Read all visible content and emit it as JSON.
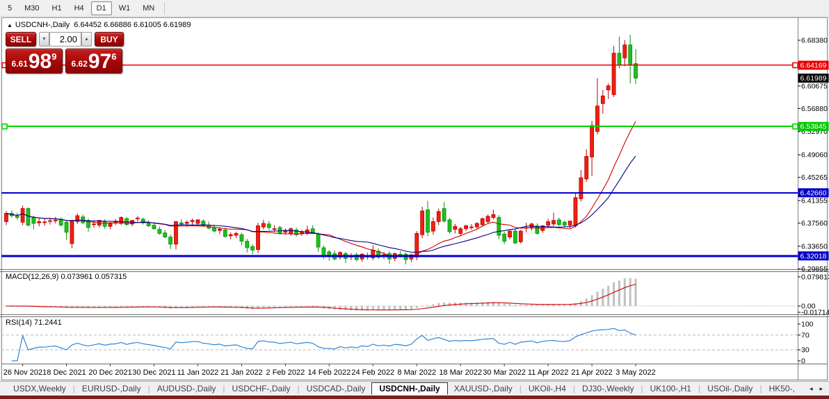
{
  "toolbar": {
    "timeframes": [
      {
        "label": "5",
        "active": false
      },
      {
        "label": "M30",
        "active": false
      },
      {
        "label": "H1",
        "active": false
      },
      {
        "label": "H4",
        "active": false
      },
      {
        "label": "D1",
        "active": true
      },
      {
        "label": "W1",
        "active": false
      },
      {
        "label": "MN",
        "active": false
      }
    ]
  },
  "chart": {
    "collapse_arrow": "▲",
    "symbol_title": "USDCNH-,Daily",
    "ohlc_text": "6.64452 6.66886 6.61005 6.61989"
  },
  "trade": {
    "sell_label": "SELL",
    "buy_label": "BUY",
    "volume": "2.00",
    "volume_down_glyph": "▼",
    "volume_up_glyph": "▲",
    "sell_price_small": "6.61",
    "sell_price_big": "98",
    "sell_price_sup": "9",
    "buy_price_small": "6.62",
    "buy_price_big": "97",
    "buy_price_sup": "6"
  },
  "indicators": {
    "macd": {
      "label": "MACD(12,26,9)",
      "value_text": "0.073961 0.057315",
      "axis_labels": [
        {
          "t": "0.079813",
          "v": 0.079813
        },
        {
          "t": "0.00",
          "v": 0
        },
        {
          "t": "-0.01714",
          "v": -0.01714
        }
      ],
      "fast": 12,
      "slow": 26,
      "signal": 9,
      "histogram_color": "#c0c0c0",
      "signal_color": "#cc0000"
    },
    "rsi": {
      "label": "RSI(14)",
      "value_text": "71.2441",
      "period": 14,
      "line_color": "#2e86d4",
      "axis_labels": [
        {
          "t": "100",
          "v": 100
        },
        {
          "t": "70",
          "v": 70
        },
        {
          "t": "30",
          "v": 30
        },
        {
          "t": "0",
          "v": 0
        }
      ],
      "dashed_levels": [
        70,
        30
      ]
    }
  },
  "chart_data": {
    "type": "candlestick",
    "symbol": "USDCNH",
    "timeframe": "Daily",
    "title": "USDCNH-,Daily",
    "current_ohlc": {
      "open": 6.64452,
      "high": 6.66886,
      "low": 6.61005,
      "close": 6.61989
    },
    "up_color": "#f02011",
    "down_color": "#1fbf1f",
    "moving_averages": [
      {
        "name": "ma-fast",
        "period": 14,
        "color": "#cc0000"
      },
      {
        "name": "ma-slow",
        "period": 21,
        "color": "#00008b"
      }
    ],
    "y_axis": {
      "ticks": [
        {
          "t": "6.68380",
          "v": 6.6838
        },
        {
          "t": "6.60675",
          "v": 6.60675
        },
        {
          "t": "6.56880",
          "v": 6.5688
        },
        {
          "t": "6.52970",
          "v": 6.5297
        },
        {
          "t": "6.49060",
          "v": 6.4906
        },
        {
          "t": "6.45265",
          "v": 6.45265
        },
        {
          "t": "6.41355",
          "v": 6.41355
        },
        {
          "t": "6.37560",
          "v": 6.3756
        },
        {
          "t": "6.33650",
          "v": 6.3365
        },
        {
          "t": "6.29855",
          "v": 6.29855
        }
      ],
      "badges": [
        {
          "t": "6.64169",
          "v": 6.64169,
          "c": "#e80000"
        },
        {
          "t": "6.61989",
          "v": 6.61989,
          "c": "#000000"
        },
        {
          "t": "6.53845",
          "v": 6.53845,
          "c": "#00c800"
        },
        {
          "t": "6.42660",
          "v": 6.4266,
          "c": "#0000c8"
        },
        {
          "t": "6.32018",
          "v": 6.32018,
          "c": "#0000c8"
        }
      ]
    },
    "horizontal_lines": [
      {
        "price": 6.64169,
        "color": "#e80000",
        "width": 1.5,
        "handles": true
      },
      {
        "price": 6.53845,
        "color": "#00d200",
        "width": 2,
        "handles": true
      },
      {
        "price": 6.4266,
        "color": "#0000c8",
        "width": 2,
        "handles": false
      },
      {
        "price": 6.32018,
        "color": "#0000c8",
        "width": 3,
        "handles": false
      }
    ],
    "x_axis": {
      "labels": [
        {
          "text": "26 Nov 2021",
          "i": 3
        },
        {
          "text": "8 Dec 2021",
          "i": 11
        },
        {
          "text": "20 Dec 2021",
          "i": 19
        },
        {
          "text": "30 Dec 2021",
          "i": 27
        },
        {
          "text": "11 Jan 2022",
          "i": 35
        },
        {
          "text": "21 Jan 2022",
          "i": 43
        },
        {
          "text": "2 Feb 2022",
          "i": 51
        },
        {
          "text": "14 Feb 2022",
          "i": 59
        },
        {
          "text": "24 Feb 2022",
          "i": 67
        },
        {
          "text": "8 Mar 2022",
          "i": 75
        },
        {
          "text": "18 Mar 2022",
          "i": 83
        },
        {
          "text": "30 Mar 2022",
          "i": 91
        },
        {
          "text": "11 Apr 2022",
          "i": 99
        },
        {
          "text": "21 Apr 2022",
          "i": 107
        },
        {
          "text": "3 May 2022",
          "i": 115
        }
      ]
    },
    "candles": [
      [
        6.378,
        6.396,
        6.372,
        6.392
      ],
      [
        6.392,
        6.397,
        6.385,
        6.388
      ],
      [
        6.387,
        6.393,
        6.381,
        6.385
      ],
      [
        6.377,
        6.405,
        6.372,
        6.4
      ],
      [
        6.4,
        6.402,
        6.37,
        6.372
      ],
      [
        6.385,
        6.388,
        6.365,
        6.375
      ],
      [
        6.376,
        6.384,
        6.37,
        6.378
      ],
      [
        6.377,
        6.383,
        6.371,
        6.3775
      ],
      [
        6.379,
        6.385,
        6.373,
        6.3795
      ],
      [
        6.38,
        6.386,
        6.375,
        6.3805
      ],
      [
        6.382,
        6.385,
        6.37,
        6.372
      ],
      [
        6.377,
        6.379,
        6.347,
        6.36
      ],
      [
        6.341,
        6.381,
        6.333,
        6.3785
      ],
      [
        6.378,
        6.392,
        6.374,
        6.388
      ],
      [
        6.386,
        6.39,
        6.374,
        6.376
      ],
      [
        6.38,
        6.383,
        6.361,
        6.368
      ],
      [
        6.374,
        6.38,
        6.368,
        6.374
      ],
      [
        6.372,
        6.381,
        6.368,
        6.38
      ],
      [
        6.378,
        6.382,
        6.366,
        6.37
      ],
      [
        6.37,
        6.377,
        6.365,
        6.376
      ],
      [
        6.377,
        6.382,
        6.372,
        6.3775
      ],
      [
        6.375,
        6.387,
        6.372,
        6.385
      ],
      [
        6.383,
        6.386,
        6.371,
        6.373
      ],
      [
        6.374,
        6.381,
        6.37,
        6.38
      ],
      [
        6.383,
        6.387,
        6.378,
        6.384
      ],
      [
        6.382,
        6.385,
        6.373,
        6.376
      ],
      [
        6.375,
        6.38,
        6.369,
        6.371
      ],
      [
        6.372,
        6.376,
        6.364,
        6.366
      ],
      [
        6.365,
        6.37,
        6.356,
        6.358
      ],
      [
        6.359,
        6.364,
        6.35,
        6.352
      ],
      [
        6.352,
        6.356,
        6.332,
        6.34
      ],
      [
        6.34,
        6.379,
        6.331,
        6.378
      ],
      [
        6.376,
        6.382,
        6.37,
        6.374
      ],
      [
        6.375,
        6.38,
        6.369,
        6.377
      ],
      [
        6.378,
        6.383,
        6.372,
        6.38
      ],
      [
        6.375,
        6.382,
        6.37,
        6.381
      ],
      [
        6.379,
        6.382,
        6.369,
        6.371
      ],
      [
        6.372,
        6.378,
        6.365,
        6.367
      ],
      [
        6.368,
        6.373,
        6.36,
        6.362
      ],
      [
        6.363,
        6.369,
        6.357,
        6.365
      ],
      [
        6.364,
        6.368,
        6.351,
        6.353
      ],
      [
        6.354,
        6.36,
        6.348,
        6.356
      ],
      [
        6.355,
        6.361,
        6.35,
        6.358
      ],
      [
        6.356,
        6.359,
        6.338,
        6.345
      ],
      [
        6.345,
        6.349,
        6.326,
        6.334
      ],
      [
        6.336,
        6.34,
        6.323,
        6.33
      ],
      [
        6.331,
        6.376,
        6.325,
        6.371
      ],
      [
        6.369,
        6.381,
        6.365,
        6.375
      ],
      [
        6.374,
        6.379,
        6.364,
        6.368
      ],
      [
        6.365,
        6.372,
        6.36,
        6.366
      ],
      [
        6.368,
        6.371,
        6.356,
        6.358
      ],
      [
        6.36,
        6.366,
        6.356,
        6.362
      ],
      [
        6.358,
        6.368,
        6.354,
        6.366
      ],
      [
        6.364,
        6.368,
        6.353,
        6.356
      ],
      [
        6.358,
        6.364,
        6.354,
        6.36
      ],
      [
        6.358,
        6.371,
        6.355,
        6.364
      ],
      [
        6.366,
        6.372,
        6.358,
        6.359
      ],
      [
        6.357,
        6.36,
        6.327,
        6.335
      ],
      [
        6.334,
        6.338,
        6.315,
        6.321
      ],
      [
        6.327,
        6.33,
        6.312,
        6.32
      ],
      [
        6.324,
        6.329,
        6.313,
        6.315
      ],
      [
        6.318,
        6.328,
        6.314,
        6.326
      ],
      [
        6.324,
        6.327,
        6.308,
        6.316
      ],
      [
        6.318,
        6.325,
        6.313,
        6.32
      ],
      [
        6.322,
        6.326,
        6.311,
        6.314
      ],
      [
        6.315,
        6.325,
        6.31,
        6.323
      ],
      [
        6.32,
        6.326,
        6.314,
        6.318
      ],
      [
        6.317,
        6.338,
        6.313,
        6.33
      ],
      [
        6.328,
        6.333,
        6.315,
        6.318
      ],
      [
        6.32,
        6.327,
        6.315,
        6.322
      ],
      [
        6.324,
        6.328,
        6.307,
        6.315
      ],
      [
        6.316,
        6.326,
        6.311,
        6.324
      ],
      [
        6.323,
        6.328,
        6.317,
        6.321
      ],
      [
        6.323,
        6.326,
        6.306,
        6.314
      ],
      [
        6.315,
        6.324,
        6.31,
        6.322
      ],
      [
        6.318,
        6.362,
        6.313,
        6.358
      ],
      [
        6.356,
        6.403,
        6.35,
        6.396
      ],
      [
        6.398,
        6.413,
        6.353,
        6.36
      ],
      [
        6.362,
        6.385,
        6.356,
        6.378
      ],
      [
        6.378,
        6.4,
        6.372,
        6.395
      ],
      [
        6.4,
        6.411,
        6.376,
        6.379
      ],
      [
        6.381,
        6.384,
        6.358,
        6.361
      ],
      [
        6.365,
        6.374,
        6.358,
        6.37
      ],
      [
        6.358,
        6.369,
        6.355,
        6.366
      ],
      [
        6.366,
        6.373,
        6.362,
        6.371
      ],
      [
        6.368,
        6.374,
        6.364,
        6.369
      ],
      [
        6.369,
        6.377,
        6.366,
        6.375
      ],
      [
        6.373,
        6.385,
        6.37,
        6.383
      ],
      [
        6.378,
        6.39,
        6.376,
        6.387
      ],
      [
        6.385,
        6.398,
        6.382,
        6.39
      ],
      [
        6.385,
        6.389,
        6.348,
        6.355
      ],
      [
        6.357,
        6.361,
        6.34,
        6.345
      ],
      [
        6.352,
        6.365,
        6.348,
        6.362
      ],
      [
        6.362,
        6.366,
        6.34,
        6.342
      ],
      [
        6.344,
        6.364,
        6.341,
        6.362
      ],
      [
        6.368,
        6.376,
        6.36,
        6.368
      ],
      [
        6.367,
        6.376,
        6.363,
        6.374
      ],
      [
        6.371,
        6.375,
        6.356,
        6.358
      ],
      [
        6.363,
        6.372,
        6.359,
        6.371
      ],
      [
        6.372,
        6.383,
        6.368,
        6.378
      ],
      [
        6.374,
        6.393,
        6.37,
        6.38
      ],
      [
        6.381,
        6.385,
        6.37,
        6.373
      ],
      [
        6.377,
        6.38,
        6.368,
        6.372
      ],
      [
        6.372,
        6.379,
        6.367,
        6.379
      ],
      [
        6.371,
        6.425,
        6.368,
        6.4185
      ],
      [
        6.4165,
        6.465,
        6.412,
        6.452
      ],
      [
        6.45,
        6.5,
        6.445,
        6.488
      ],
      [
        6.487,
        6.548,
        6.455,
        6.54
      ],
      [
        6.53,
        6.62,
        6.525,
        6.573
      ],
      [
        6.577,
        6.6,
        6.56,
        6.59
      ],
      [
        6.6,
        6.611,
        6.585,
        6.607
      ],
      [
        6.592,
        6.674,
        6.588,
        6.662
      ],
      [
        6.662,
        6.69,
        6.636,
        6.642
      ],
      [
        6.654,
        6.684,
        6.64,
        6.676
      ],
      [
        6.676,
        6.693,
        6.611,
        6.642
      ],
      [
        6.64452,
        6.66886,
        6.61005,
        6.61989
      ]
    ]
  },
  "tabs": {
    "separator": "|",
    "scroll_left": "◂",
    "scroll_right": "▸",
    "items": [
      {
        "label": "USDX,Weekly",
        "active": false
      },
      {
        "label": "EURUSD-,Daily",
        "active": false
      },
      {
        "label": "AUDUSD-,Daily",
        "active": false
      },
      {
        "label": "USDCHF-,Daily",
        "active": false
      },
      {
        "label": "USDCAD-,Daily",
        "active": false
      },
      {
        "label": "USDCNH-,Daily",
        "active": true
      },
      {
        "label": "XAUUSD-,Daily",
        "active": false
      },
      {
        "label": "UKOil-,H4",
        "active": false
      },
      {
        "label": "DJ30-,Weekly",
        "active": false
      },
      {
        "label": "UK100-,H1",
        "active": false
      },
      {
        "label": "USOil-,Daily",
        "active": false
      },
      {
        "label": "HK50-,",
        "active": false
      }
    ]
  }
}
